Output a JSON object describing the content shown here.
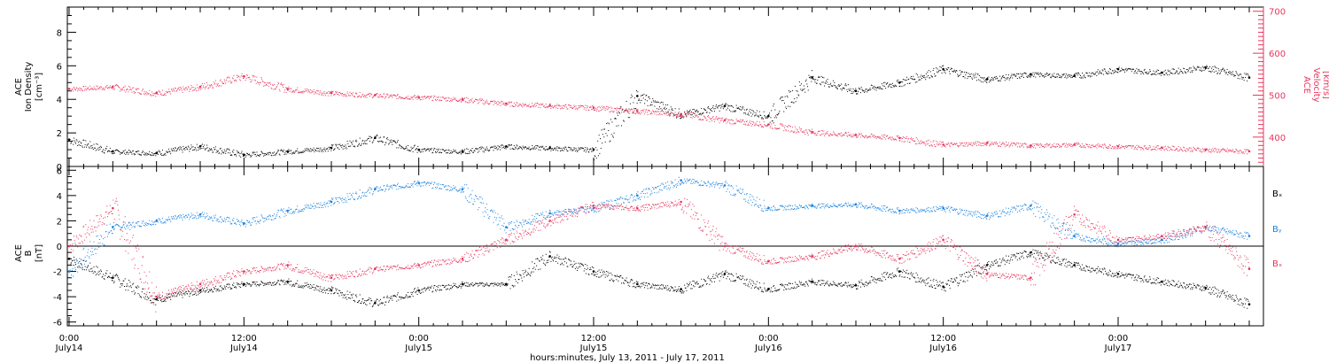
{
  "colors": {
    "black": "#000000",
    "pink": "#e8365d",
    "blue": "#1a82e0",
    "grid": "#000000"
  },
  "chart_data": [
    {
      "type": "scatter",
      "panel": "top",
      "ylabel_left": [
        "ACE",
        "Ion Density",
        "[cm⁻³]"
      ],
      "ylabel_right": [
        "ACE",
        "Velocity",
        "[km/s]"
      ],
      "y_ticks_left": [
        "0",
        "2",
        "4",
        "6",
        "8"
      ],
      "y_ticks_right": [
        "400",
        "500",
        "600",
        "700"
      ],
      "ylim_left": [
        0,
        9.5
      ],
      "ylim_right": [
        330,
        710
      ],
      "series": [
        {
          "axis": "left",
          "color": "#000000",
          "x": [
            0,
            3,
            6,
            9,
            12,
            15,
            18,
            21,
            24,
            27,
            30,
            33,
            36,
            39,
            42,
            45,
            48,
            51,
            54,
            57,
            60,
            63,
            66,
            69,
            72,
            75,
            78,
            81
          ],
          "y": [
            1.6,
            0.9,
            0.8,
            1.2,
            0.7,
            0.9,
            1.1,
            1.7,
            1.0,
            0.9,
            1.2,
            1.1,
            1.0,
            4.2,
            3.1,
            3.6,
            3.0,
            5.3,
            4.5,
            5.0,
            5.8,
            5.2,
            5.5,
            5.4,
            5.8,
            5.6,
            5.9,
            5.3
          ]
        },
        {
          "axis": "right",
          "color": "#e8365d",
          "x": [
            0,
            3,
            6,
            9,
            12,
            15,
            18,
            21,
            24,
            27,
            30,
            33,
            36,
            39,
            42,
            45,
            48,
            51,
            54,
            57,
            60,
            63,
            66,
            69,
            72,
            75,
            78,
            81
          ],
          "y": [
            515,
            520,
            505,
            520,
            545,
            515,
            505,
            500,
            495,
            490,
            480,
            475,
            470,
            462,
            455,
            440,
            430,
            412,
            405,
            398,
            382,
            386,
            380,
            382,
            378,
            375,
            370,
            366
          ]
        }
      ]
    },
    {
      "type": "scatter",
      "panel": "bottom",
      "ylabel": [
        "ACE",
        "B",
        "[nT]"
      ],
      "y_ticks": [
        "-6",
        "-4",
        "-2",
        "0",
        "2",
        "4",
        "6"
      ],
      "ylim": [
        -6.3,
        6.3
      ],
      "legend": [
        "Bₓ",
        "Bᵧ",
        "Bₓ"
      ],
      "series": [
        {
          "name": "Bₓ",
          "color": "#000000",
          "x": [
            0,
            3,
            6,
            9,
            12,
            15,
            18,
            21,
            24,
            27,
            30,
            33,
            36,
            39,
            42,
            45,
            48,
            51,
            54,
            57,
            60,
            63,
            66,
            69,
            72,
            75,
            78,
            81
          ],
          "y": [
            -1.0,
            -2.5,
            -4.2,
            -3.5,
            -3.0,
            -2.8,
            -3.5,
            -4.5,
            -3.5,
            -3.0,
            -3.0,
            -0.8,
            -2.0,
            -3.0,
            -3.4,
            -2.2,
            -3.4,
            -2.8,
            -3.1,
            -2.0,
            -3.2,
            -1.5,
            -0.5,
            -1.5,
            -2.2,
            -2.8,
            -3.3,
            -4.6
          ]
        },
        {
          "name": "Bᵧ",
          "color": "#1a82e0",
          "x": [
            0,
            3,
            6,
            9,
            12,
            15,
            18,
            21,
            24,
            27,
            30,
            33,
            36,
            39,
            42,
            45,
            48,
            51,
            54,
            57,
            60,
            63,
            66,
            69,
            72,
            75,
            78,
            81
          ],
          "y": [
            -2.0,
            1.5,
            2.0,
            2.5,
            1.8,
            2.8,
            3.5,
            4.5,
            5.0,
            4.5,
            1.5,
            2.6,
            3.0,
            4.0,
            5.2,
            4.8,
            3.0,
            3.2,
            3.3,
            2.8,
            3.0,
            2.4,
            3.2,
            0.8,
            0.2,
            0.5,
            1.5,
            0.8
          ]
        },
        {
          "name": "Bₓ",
          "color": "#e8365d",
          "x": [
            0,
            3,
            6,
            9,
            12,
            15,
            18,
            21,
            24,
            27,
            30,
            33,
            36,
            39,
            42,
            45,
            48,
            51,
            54,
            57,
            60,
            63,
            66,
            69,
            72,
            75,
            78,
            81
          ],
          "y": [
            0.0,
            3.0,
            -4.0,
            -3.0,
            -2.0,
            -1.5,
            -2.5,
            -1.8,
            -1.5,
            -1.0,
            0.5,
            2.0,
            3.2,
            3.0,
            3.5,
            0.0,
            -1.2,
            -0.8,
            0.0,
            -1.0,
            0.5,
            -2.2,
            -2.5,
            2.5,
            0.5,
            0.8,
            1.5,
            -1.8
          ]
        }
      ]
    }
  ],
  "x_axis": {
    "xlim": [
      0,
      81
    ],
    "ticks": [
      {
        "t": "0:00",
        "d": "July14",
        "h": 0
      },
      {
        "t": "12:00",
        "d": "July14",
        "h": 12
      },
      {
        "t": "0:00",
        "d": "July15",
        "h": 24
      },
      {
        "t": "12:00",
        "d": "July15",
        "h": 36
      },
      {
        "t": "0:00",
        "d": "July16",
        "h": 48
      },
      {
        "t": "12:00",
        "d": "July16",
        "h": 60
      },
      {
        "t": "0:00",
        "d": "July17",
        "h": 72
      }
    ],
    "xlabel": "hours:minutes, July 13, 2011 - July 17, 2011"
  }
}
